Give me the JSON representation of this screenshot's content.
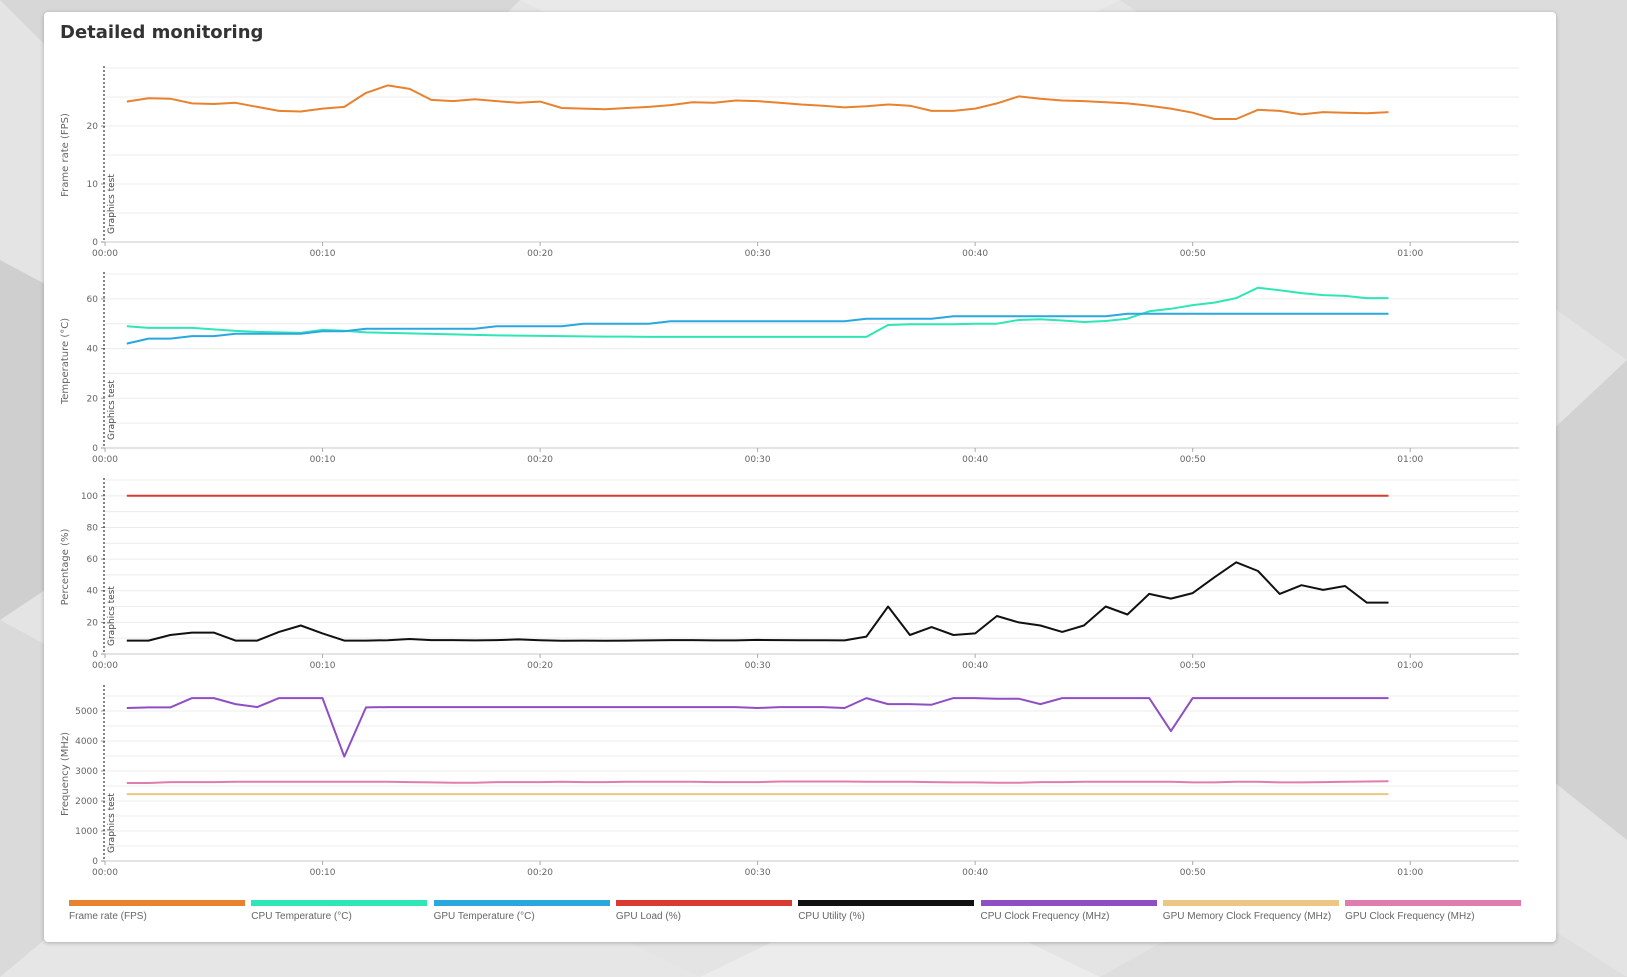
{
  "page": {
    "title": "Detailed monitoring"
  },
  "colors": {
    "background": "#e4e4e4",
    "fps": "#e8822e",
    "cpu_temp": "#2ee6b6",
    "gpu_temp": "#29a8e0",
    "gpu_load": "#d93a32",
    "cpu_util": "#111111",
    "cpu_clock": "#8e4fc4",
    "gpu_mem_clock": "#ecc683",
    "gpu_clock": "#e07dae"
  },
  "legend": [
    {
      "label": "Frame rate (FPS)",
      "color": "#e8822e"
    },
    {
      "label": "CPU Temperature (°C)",
      "color": "#2ee6b6"
    },
    {
      "label": "GPU Temperature (°C)",
      "color": "#29a8e0"
    },
    {
      "label": "GPU Load (%)",
      "color": "#d93a32"
    },
    {
      "label": "CPU Utility (%)",
      "color": "#111111"
    },
    {
      "label": "CPU Clock Frequency (MHz)",
      "color": "#8e4fc4"
    },
    {
      "label": "GPU Memory Clock Frequency (MHz)",
      "color": "#ecc683"
    },
    {
      "label": "GPU Clock Frequency (MHz)",
      "color": "#e07dae"
    }
  ],
  "chart_data": [
    {
      "type": "line",
      "ylabel": "Frame rate (FPS)",
      "xlabel": "",
      "x_ticks": [
        "00:00",
        "00:10",
        "00:20",
        "00:30",
        "00:40",
        "00:50",
        "01:00"
      ],
      "x_range_seconds": [
        0,
        65
      ],
      "ylim": [
        0,
        30
      ],
      "y_ticks": [
        0,
        10,
        20
      ],
      "grid": true,
      "event": {
        "label": "Graphics test",
        "x_seconds": 0
      },
      "series": [
        {
          "name": "Frame rate (FPS)",
          "color": "#e8822e",
          "x_seconds": [
            1,
            2,
            3,
            4,
            5,
            6,
            7,
            8,
            9,
            10,
            11,
            12,
            13,
            14,
            15,
            16,
            17,
            18,
            19,
            20,
            21,
            22,
            23,
            24,
            25,
            26,
            27,
            28,
            29,
            30,
            31,
            32,
            33,
            34,
            35,
            36,
            37,
            38,
            39,
            40,
            41,
            42,
            43,
            44,
            45,
            46,
            47,
            48,
            49,
            50,
            51,
            52,
            53,
            54,
            55,
            56,
            57,
            58,
            59
          ],
          "values": [
            24.2,
            24.8,
            24.7,
            23.9,
            23.8,
            24.0,
            23.3,
            22.6,
            22.5,
            23.0,
            23.3,
            25.7,
            27.0,
            26.4,
            24.5,
            24.3,
            24.6,
            24.3,
            24.0,
            24.2,
            23.1,
            23.0,
            22.9,
            23.1,
            23.3,
            23.6,
            24.1,
            24.0,
            24.4,
            24.3,
            24.0,
            23.7,
            23.5,
            23.2,
            23.4,
            23.7,
            23.5,
            22.6,
            22.6,
            23.0,
            23.9,
            25.1,
            24.7,
            24.4,
            24.3,
            24.1,
            23.9,
            23.5,
            23.0,
            22.3,
            21.2,
            21.2,
            22.8,
            22.6,
            22.0,
            22.4,
            22.3,
            22.2,
            22.4
          ]
        }
      ]
    },
    {
      "type": "line",
      "ylabel": "Temperature (°C)",
      "xlabel": "",
      "x_ticks": [
        "00:00",
        "00:10",
        "00:20",
        "00:30",
        "00:40",
        "00:50",
        "01:00"
      ],
      "x_range_seconds": [
        0,
        65
      ],
      "ylim": [
        0,
        70
      ],
      "y_ticks": [
        0,
        20,
        40,
        60
      ],
      "grid": true,
      "event": {
        "label": "Graphics test",
        "x_seconds": 0
      },
      "series": [
        {
          "name": "CPU Temperature (°C)",
          "color": "#2ee6b6",
          "x_seconds": [
            1,
            2,
            3,
            4,
            5,
            6,
            7,
            8,
            9,
            10,
            11,
            12,
            13,
            14,
            15,
            16,
            17,
            18,
            19,
            20,
            21,
            22,
            23,
            24,
            25,
            26,
            27,
            28,
            29,
            30,
            31,
            32,
            33,
            34,
            35,
            36,
            37,
            38,
            39,
            40,
            41,
            42,
            43,
            44,
            45,
            46,
            47,
            48,
            49,
            50,
            51,
            52,
            53,
            54,
            55,
            56,
            57,
            58,
            59
          ],
          "values": [
            49,
            48.3,
            48.3,
            48.3,
            47.7,
            47.1,
            46.7,
            46.5,
            46.3,
            47.5,
            47.2,
            46.5,
            46.3,
            46.1,
            45.9,
            45.7,
            45.5,
            45.3,
            45.2,
            45.1,
            45,
            44.9,
            44.8,
            44.8,
            44.7,
            44.7,
            44.7,
            44.7,
            44.7,
            44.7,
            44.7,
            44.7,
            44.7,
            44.7,
            44.7,
            49.5,
            49.8,
            49.8,
            49.8,
            50,
            50,
            51.5,
            51.8,
            51.3,
            50.7,
            51.1,
            52,
            55,
            56,
            57.5,
            58.5,
            60.3,
            64.5,
            63.5,
            62.3,
            61.5,
            61.2,
            60.3,
            60.3
          ]
        },
        {
          "name": "GPU Temperature (°C)",
          "color": "#29a8e0",
          "x_seconds": [
            1,
            2,
            3,
            4,
            5,
            6,
            7,
            8,
            9,
            10,
            11,
            12,
            13,
            14,
            15,
            16,
            17,
            18,
            19,
            20,
            21,
            22,
            23,
            24,
            25,
            26,
            27,
            28,
            29,
            30,
            31,
            32,
            33,
            34,
            35,
            36,
            37,
            38,
            39,
            40,
            41,
            42,
            43,
            44,
            45,
            46,
            47,
            48,
            49,
            50,
            51,
            52,
            53,
            54,
            55,
            56,
            57,
            58,
            59
          ],
          "values": [
            42,
            44,
            44,
            45,
            45,
            46,
            46,
            46,
            46,
            47,
            47,
            48,
            48,
            48,
            48,
            48,
            48,
            49,
            49,
            49,
            49,
            50,
            50,
            50,
            50,
            51,
            51,
            51,
            51,
            51,
            51,
            51,
            51,
            51,
            52,
            52,
            52,
            52,
            53,
            53,
            53,
            53,
            53,
            53,
            53,
            53,
            54,
            54,
            54,
            54,
            54,
            54,
            54,
            54,
            54,
            54,
            54,
            54,
            54
          ]
        }
      ]
    },
    {
      "type": "line",
      "ylabel": "Percentage (%)",
      "xlabel": "",
      "x_ticks": [
        "00:00",
        "00:10",
        "00:20",
        "00:30",
        "00:40",
        "00:50",
        "01:00"
      ],
      "x_range_seconds": [
        0,
        65
      ],
      "ylim": [
        0,
        110
      ],
      "y_ticks": [
        0,
        20,
        40,
        60,
        80,
        100
      ],
      "grid": true,
      "event": {
        "label": "Graphics test",
        "x_seconds": 0
      },
      "series": [
        {
          "name": "GPU Load (%)",
          "color": "#d93a32",
          "x_seconds": [
            1,
            59
          ],
          "values": [
            100,
            100
          ]
        },
        {
          "name": "CPU Utility (%)",
          "color": "#111111",
          "x_seconds": [
            1,
            2,
            3,
            4,
            5,
            6,
            7,
            8,
            9,
            10,
            11,
            12,
            13,
            14,
            15,
            16,
            17,
            18,
            19,
            20,
            21,
            22,
            23,
            24,
            25,
            26,
            27,
            28,
            29,
            30,
            31,
            32,
            33,
            34,
            35,
            36,
            37,
            38,
            39,
            40,
            41,
            42,
            43,
            44,
            45,
            46,
            47,
            48,
            49,
            50,
            51,
            52,
            53,
            54,
            55,
            56,
            57,
            58,
            59
          ],
          "values": [
            8.5,
            8.5,
            12,
            13.5,
            13.5,
            8.5,
            8.5,
            14,
            18,
            13,
            8.5,
            8.5,
            8.7,
            9.5,
            8.8,
            8.8,
            8.6,
            8.8,
            9.2,
            8.7,
            8.4,
            8.5,
            8.4,
            8.5,
            8.6,
            8.8,
            8.8,
            8.6,
            8.6,
            8.9,
            8.8,
            8.7,
            8.7,
            8.6,
            11,
            30,
            12,
            17,
            12,
            13,
            24,
            20,
            18,
            14,
            18,
            30,
            25,
            38,
            35,
            38.5,
            48.5,
            58,
            52.5,
            38,
            43.5,
            40.5,
            43,
            32.5,
            32.5
          ]
        }
      ]
    },
    {
      "type": "line",
      "ylabel": "Frequency (MHz)",
      "xlabel": "",
      "x_ticks": [
        "00:00",
        "00:10",
        "00:20",
        "00:30",
        "00:40",
        "00:50",
        "01:00"
      ],
      "x_range_seconds": [
        0,
        65
      ],
      "ylim": [
        0,
        5800
      ],
      "y_ticks": [
        0,
        1000,
        2000,
        3000,
        4000,
        5000
      ],
      "grid": true,
      "event": {
        "label": "Graphics test",
        "x_seconds": 0
      },
      "series": [
        {
          "name": "CPU Clock Frequency (MHz)",
          "color": "#8e4fc4",
          "x_seconds": [
            1,
            2,
            3,
            4,
            5,
            6,
            7,
            8,
            9,
            10,
            11,
            12,
            13,
            14,
            15,
            16,
            17,
            18,
            19,
            20,
            21,
            22,
            23,
            24,
            25,
            26,
            27,
            28,
            29,
            30,
            31,
            32,
            33,
            34,
            35,
            36,
            37,
            38,
            39,
            40,
            41,
            42,
            43,
            44,
            45,
            46,
            47,
            48,
            49,
            50,
            51,
            52,
            53,
            54,
            55,
            56,
            57,
            58,
            59
          ],
          "values": [
            5100,
            5120,
            5120,
            5430,
            5430,
            5230,
            5130,
            5430,
            5430,
            5430,
            3480,
            5120,
            5130,
            5130,
            5130,
            5130,
            5130,
            5130,
            5130,
            5130,
            5130,
            5130,
            5130,
            5130,
            5130,
            5130,
            5130,
            5130,
            5130,
            5100,
            5130,
            5130,
            5130,
            5100,
            5430,
            5230,
            5230,
            5210,
            5430,
            5430,
            5410,
            5410,
            5230,
            5430,
            5430,
            5430,
            5430,
            5430,
            4330,
            5430,
            5430,
            5430,
            5430,
            5430,
            5430,
            5430,
            5430,
            5430,
            5430
          ]
        },
        {
          "name": "GPU Clock Frequency (MHz)",
          "color": "#e07dae",
          "x_seconds": [
            1,
            2,
            3,
            4,
            5,
            6,
            7,
            8,
            9,
            10,
            11,
            12,
            13,
            14,
            15,
            16,
            17,
            18,
            19,
            20,
            21,
            22,
            23,
            24,
            25,
            26,
            27,
            28,
            29,
            30,
            31,
            32,
            33,
            34,
            35,
            36,
            37,
            38,
            39,
            40,
            41,
            42,
            43,
            44,
            45,
            46,
            47,
            48,
            49,
            50,
            51,
            52,
            53,
            54,
            55,
            56,
            57,
            58,
            59
          ],
          "values": [
            2600,
            2600,
            2630,
            2630,
            2630,
            2640,
            2640,
            2640,
            2640,
            2640,
            2640,
            2640,
            2640,
            2630,
            2620,
            2610,
            2610,
            2630,
            2630,
            2630,
            2640,
            2630,
            2630,
            2640,
            2640,
            2640,
            2640,
            2630,
            2630,
            2630,
            2650,
            2650,
            2650,
            2650,
            2640,
            2640,
            2640,
            2630,
            2620,
            2620,
            2610,
            2610,
            2630,
            2630,
            2640,
            2640,
            2640,
            2640,
            2640,
            2620,
            2620,
            2640,
            2640,
            2620,
            2620,
            2630,
            2640,
            2650,
            2660
          ]
        },
        {
          "name": "GPU Memory Clock Frequency (MHz)",
          "color": "#ecc683",
          "x_seconds": [
            1,
            59
          ],
          "values": [
            2230,
            2230
          ]
        }
      ]
    }
  ]
}
